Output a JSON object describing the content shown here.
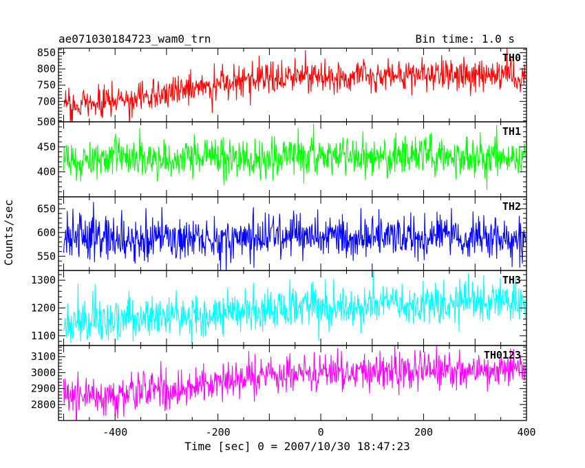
{
  "chart_data": {
    "type": "line",
    "title": "ae071030184723_wam0_trn",
    "bin_time_label": "Bin time: 1.0 s",
    "xlabel": "Time [sec] 0 = 2007/10/30 18:47:23",
    "ylabel": "Counts/sec",
    "xlim": [
      -510,
      400
    ],
    "x_ticks": [
      -400,
      -200,
      0,
      200,
      400
    ],
    "x_step": 1.0,
    "grid": false,
    "panels": [
      {
        "name": "TH0",
        "color": "#ff0000",
        "ylim": [
          637,
          864
        ],
        "y_ticks": [
          700,
          750,
          800,
          850
        ],
        "y_ticks_minor_step": 10,
        "x_start": -500,
        "x_end": 398,
        "trend": [
          {
            "x": -500,
            "y": 688
          },
          {
            "x": -400,
            "y": 700
          },
          {
            "x": -300,
            "y": 722
          },
          {
            "x": -200,
            "y": 755
          },
          {
            "x": -100,
            "y": 768
          },
          {
            "x": 0,
            "y": 778
          },
          {
            "x": 100,
            "y": 778
          },
          {
            "x": 200,
            "y": 782
          },
          {
            "x": 300,
            "y": 782
          },
          {
            "x": 398,
            "y": 780
          }
        ],
        "noise_sigma": 26
      },
      {
        "name": "TH1",
        "color": "#00ff00",
        "ylim": [
          350,
          500
        ],
        "y_ticks": [
          400,
          450,
          500
        ],
        "y_ticks_minor_step": 10,
        "x_start": -500,
        "x_end": 398,
        "trend": [
          {
            "x": -500,
            "y": 425
          },
          {
            "x": -250,
            "y": 428
          },
          {
            "x": 0,
            "y": 432
          },
          {
            "x": 200,
            "y": 430
          },
          {
            "x": 398,
            "y": 430
          }
        ],
        "noise_sigma": 20
      },
      {
        "name": "TH2",
        "color": "#0000ff",
        "ylim": [
          520,
          675
        ],
        "y_ticks": [
          550,
          600,
          650
        ],
        "y_ticks_minor_step": 10,
        "x_start": -500,
        "x_end": 398,
        "trend": [
          {
            "x": -500,
            "y": 585
          },
          {
            "x": -250,
            "y": 587
          },
          {
            "x": 0,
            "y": 590
          },
          {
            "x": 200,
            "y": 591
          },
          {
            "x": 398,
            "y": 592
          }
        ],
        "noise_sigma": 24
      },
      {
        "name": "TH3",
        "color": "#00ffff",
        "ylim": [
          1065,
          1335
        ],
        "y_ticks": [
          1100,
          1200,
          1300
        ],
        "y_ticks_minor_step": 20,
        "x_start": -500,
        "x_end": 398,
        "trend": [
          {
            "x": -500,
            "y": 1150
          },
          {
            "x": -300,
            "y": 1163
          },
          {
            "x": -100,
            "y": 1190
          },
          {
            "x": 100,
            "y": 1210
          },
          {
            "x": 398,
            "y": 1222
          }
        ],
        "noise_sigma": 38
      },
      {
        "name": "TH0123",
        "color": "#ff00ff",
        "ylim": [
          2700,
          3170
        ],
        "y_ticks": [
          2800,
          2900,
          3000,
          3100
        ],
        "y_ticks_minor_step": 20,
        "x_start": -500,
        "x_end": 398,
        "trend": [
          {
            "x": -500,
            "y": 2850
          },
          {
            "x": -400,
            "y": 2865
          },
          {
            "x": -300,
            "y": 2895
          },
          {
            "x": -200,
            "y": 2935
          },
          {
            "x": -100,
            "y": 2975
          },
          {
            "x": 0,
            "y": 2995
          },
          {
            "x": 100,
            "y": 3005
          },
          {
            "x": 200,
            "y": 3015
          },
          {
            "x": 300,
            "y": 3020
          },
          {
            "x": 398,
            "y": 3025
          }
        ],
        "noise_sigma": 58
      }
    ]
  }
}
